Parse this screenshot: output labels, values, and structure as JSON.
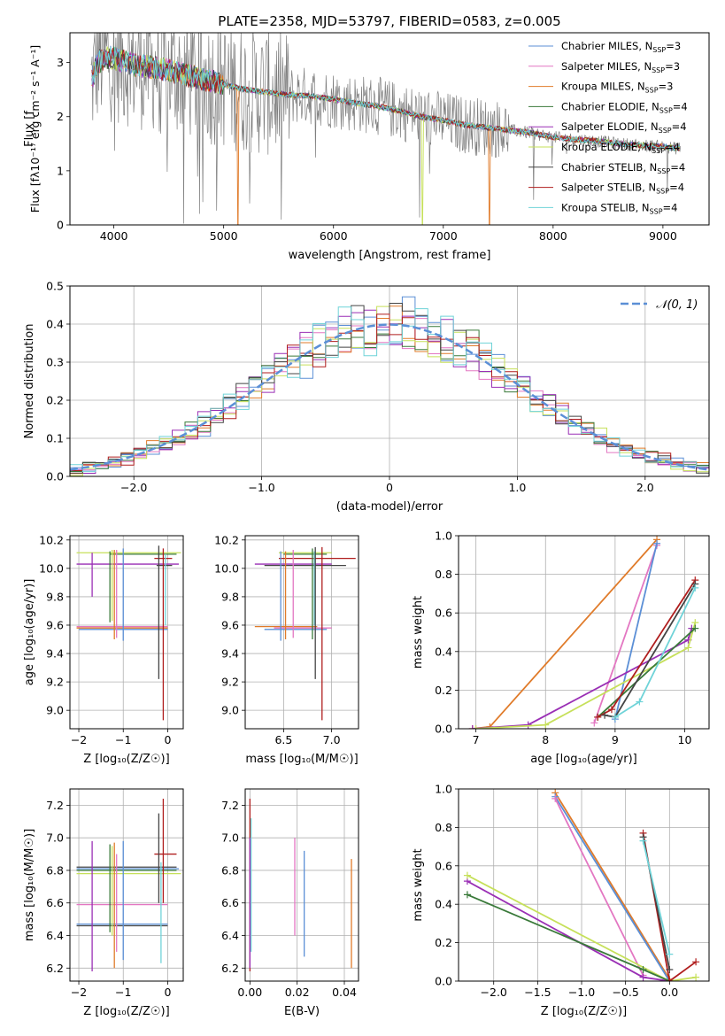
{
  "figure": {
    "title": "PLATE=2358, MJD=53797, FIBERID=0583, z=0.005"
  },
  "colors": {
    "chabrier_miles": "#5b8fd6",
    "salpeter_miles": "#e377c2",
    "kroupa_miles": "#e07b2a",
    "chabrier_elodie": "#3a7a3a",
    "salpeter_elodie": "#9a2fb5",
    "kroupa_elodie": "#c6e05a",
    "chabrier_stelib": "#444444",
    "salpeter_stelib": "#b01e1e",
    "kroupa_stelib": "#6fd3d8",
    "data": "#7f7f7f",
    "gaussian": "#5b8fd6"
  },
  "chart_data": [
    {
      "id": "spectrum",
      "type": "line",
      "xlabel": "wavelength [Angstrom, rest frame]",
      "ylabel": "Flux [f",
      "ylabel_tail": "10",
      "ylabel_unit": " erg cm",
      "ylabel_unit2": " s",
      "ylabel_unit3": " A",
      "xlim": [
        3600,
        9420
      ],
      "ylim": [
        0,
        3.55
      ],
      "xticks": [
        4000,
        5000,
        6000,
        7000,
        8000,
        9000
      ],
      "yticks": [
        0,
        1,
        2,
        3
      ],
      "legend_position": "upper-right",
      "legend": [
        {
          "model": "Chabrier MILES",
          "nssp": "3",
          "color_key": "chabrier_miles"
        },
        {
          "model": "Salpeter MILES",
          "nssp": "3",
          "color_key": "salpeter_miles"
        },
        {
          "model": "Kroupa MILES",
          "nssp": "3",
          "color_key": "kroupa_miles"
        },
        {
          "model": "Chabrier ELODIE",
          "nssp": "4",
          "color_key": "chabrier_elodie"
        },
        {
          "model": "Salpeter ELODIE",
          "nssp": "4",
          "color_key": "salpeter_elodie"
        },
        {
          "model": "Kroupa ELODIE",
          "nssp": "4",
          "color_key": "kroupa_elodie"
        },
        {
          "model": "Chabrier STELIB",
          "nssp": "4",
          "color_key": "chabrier_stelib"
        },
        {
          "model": "Salpeter STELIB",
          "nssp": "4",
          "color_key": "salpeter_stelib"
        },
        {
          "model": "Kroupa STELIB",
          "nssp": "4",
          "color_key": "kroupa_stelib"
        }
      ],
      "continuum": [
        [
          3790,
          2.6
        ],
        [
          3850,
          3.0
        ],
        [
          3950,
          3.1
        ],
        [
          4050,
          3.05
        ],
        [
          4200,
          2.95
        ],
        [
          4400,
          2.9
        ],
        [
          4600,
          2.8
        ],
        [
          4800,
          2.7
        ],
        [
          5000,
          2.6
        ],
        [
          5200,
          2.5
        ],
        [
          5400,
          2.45
        ],
        [
          5600,
          2.4
        ],
        [
          5800,
          2.38
        ],
        [
          6000,
          2.32
        ],
        [
          6200,
          2.25
        ],
        [
          6400,
          2.2
        ],
        [
          6600,
          2.1
        ],
        [
          6800,
          2.0
        ],
        [
          7000,
          1.93
        ],
        [
          7200,
          1.85
        ],
        [
          7400,
          1.8
        ],
        [
          7600,
          1.75
        ],
        [
          7800,
          1.7
        ],
        [
          8000,
          1.62
        ],
        [
          8200,
          1.58
        ],
        [
          8400,
          1.55
        ],
        [
          8600,
          1.5
        ],
        [
          8800,
          1.47
        ],
        [
          9000,
          1.45
        ],
        [
          9100,
          1.42
        ]
      ],
      "dropouts": [
        [
          5130,
          "kroupa_miles"
        ],
        [
          6810,
          "kroupa_elodie"
        ],
        [
          7420,
          "kroupa_miles"
        ]
      ]
    },
    {
      "id": "residuals",
      "type": "histogram",
      "xlabel": "(data-model)/error",
      "ylabel": "Normed distribution",
      "xlim": [
        -2.5,
        2.5
      ],
      "ylim": [
        0,
        0.5
      ],
      "xticks": [
        -2,
        -1,
        0,
        1,
        2
      ],
      "yticks": [
        0.0,
        0.1,
        0.2,
        0.3,
        0.4,
        0.5
      ],
      "grid": true,
      "legend_position": "upper-right",
      "legend_label": "𝒩(0, 1)",
      "bin_width": 0.1,
      "bin_start": -2.5,
      "gaussian": {
        "mean": 0,
        "sigma": 1
      }
    },
    {
      "id": "age-vs-Z",
      "type": "errorbar",
      "xlabel": "Z [log₁₀(Z/Z☉)]",
      "ylabel": "age  [log₁₀(age/yr)]",
      "xlim": [
        -2.2,
        0.35
      ],
      "ylim": [
        8.87,
        10.23
      ],
      "xticks": [
        -2,
        -1,
        0
      ],
      "yticks": [
        9.0,
        9.2,
        9.4,
        9.6,
        9.8,
        10.0,
        10.2
      ],
      "grid": true,
      "hbars": [
        {
          "y": 10.11,
          "x0": -2.05,
          "x1": 0.3,
          "c": "kroupa_elodie"
        },
        {
          "y": 10.1,
          "x0": -1.3,
          "x1": 0.2,
          "c": "chabrier_elodie"
        },
        {
          "y": 10.07,
          "x0": -0.3,
          "x1": 0.1,
          "c": "salpeter_stelib"
        },
        {
          "y": 10.03,
          "x0": -2.05,
          "x1": 0.25,
          "c": "salpeter_elodie"
        },
        {
          "y": 10.02,
          "x0": -0.25,
          "x1": 0.1,
          "c": "chabrier_stelib"
        },
        {
          "y": 9.59,
          "x0": -2.05,
          "x1": 0.0,
          "c": "salpeter_miles"
        },
        {
          "y": 9.58,
          "x0": -2.05,
          "x1": 0.0,
          "c": "kroupa_miles"
        },
        {
          "y": 9.57,
          "x0": -2.0,
          "x1": 0.0,
          "c": "chabrier_miles"
        }
      ],
      "vbars": [
        {
          "x": -1.7,
          "y0": 9.8,
          "y1": 10.11,
          "c": "salpeter_elodie"
        },
        {
          "x": -1.3,
          "y0": 9.62,
          "y1": 10.12,
          "c": "chabrier_elodie"
        },
        {
          "x": -1.25,
          "y0": 9.63,
          "y1": 10.13,
          "c": "kroupa_elodie"
        },
        {
          "x": -1.2,
          "y0": 9.5,
          "y1": 10.13,
          "c": "kroupa_miles"
        },
        {
          "x": -1.15,
          "y0": 9.51,
          "y1": 10.13,
          "c": "salpeter_miles"
        },
        {
          "x": -1.0,
          "y0": 9.49,
          "y1": 10.14,
          "c": "chabrier_miles"
        },
        {
          "x": -0.2,
          "y0": 9.22,
          "y1": 10.16,
          "c": "chabrier_stelib"
        },
        {
          "x": -0.1,
          "y0": 8.93,
          "y1": 10.14,
          "c": "salpeter_stelib"
        },
        {
          "x": -0.05,
          "y0": 9.6,
          "y1": 10.1,
          "c": "kroupa_stelib"
        }
      ]
    },
    {
      "id": "age-vs-mass",
      "type": "errorbar",
      "xlabel": "mass [log₁₀(M/M☉)]",
      "ylabel": "",
      "xlim": [
        6.1,
        7.28
      ],
      "ylim": [
        8.87,
        10.23
      ],
      "xticks": [
        6.5,
        7.0
      ],
      "yticks": [
        9.0,
        9.2,
        9.4,
        9.6,
        9.8,
        10.0,
        10.2
      ],
      "grid": true,
      "hbars": [
        {
          "y": 10.11,
          "x0": 6.45,
          "x1": 7.0,
          "c": "kroupa_elodie"
        },
        {
          "y": 10.1,
          "x0": 6.5,
          "x1": 6.95,
          "c": "chabrier_elodie"
        },
        {
          "y": 10.07,
          "x0": 6.45,
          "x1": 7.25,
          "c": "salpeter_stelib"
        },
        {
          "y": 10.03,
          "x0": 6.2,
          "x1": 7.0,
          "c": "salpeter_elodie"
        },
        {
          "y": 10.02,
          "x0": 6.3,
          "x1": 7.15,
          "c": "chabrier_stelib"
        },
        {
          "y": 9.59,
          "x0": 6.2,
          "x1": 6.85,
          "c": "kroupa_miles"
        },
        {
          "y": 9.58,
          "x0": 6.4,
          "x1": 7.0,
          "c": "salpeter_miles"
        },
        {
          "y": 9.57,
          "x0": 6.3,
          "x1": 6.95,
          "c": "chabrier_miles"
        }
      ],
      "vbars": [
        {
          "x": 6.47,
          "y0": 9.49,
          "y1": 10.12,
          "c": "chabrier_miles"
        },
        {
          "x": 6.52,
          "y0": 9.5,
          "y1": 10.12,
          "c": "kroupa_miles"
        },
        {
          "x": 6.6,
          "y0": 9.51,
          "y1": 10.13,
          "c": "salpeter_miles"
        },
        {
          "x": 6.8,
          "y0": 9.5,
          "y1": 10.14,
          "c": "chabrier_elodie"
        },
        {
          "x": 6.82,
          "y0": 9.6,
          "y1": 10.12,
          "c": "kroupa_stelib"
        },
        {
          "x": 6.83,
          "y0": 9.22,
          "y1": 10.15,
          "c": "chabrier_stelib"
        },
        {
          "x": 6.9,
          "y0": 8.93,
          "y1": 10.15,
          "c": "salpeter_stelib"
        }
      ]
    },
    {
      "id": "weight-vs-age",
      "type": "line",
      "xlabel": "age  [log₁₀(age/yr)]",
      "ylabel": "mass weight",
      "xlim": [
        6.75,
        10.35
      ],
      "ylim": [
        0,
        1.0
      ],
      "xticks": [
        7,
        8,
        9,
        10
      ],
      "yticks": [
        0.0,
        0.2,
        0.4,
        0.6,
        0.8,
        1.0
      ],
      "grid": true,
      "series": [
        {
          "c": "kroupa_miles",
          "points": [
            [
              6.95,
              0.0
            ],
            [
              7.2,
              0.01
            ],
            [
              9.6,
              0.98
            ]
          ]
        },
        {
          "c": "salpeter_miles",
          "points": [
            [
              8.7,
              0.03
            ],
            [
              9.6,
              0.95
            ]
          ]
        },
        {
          "c": "chabrier_miles",
          "points": [
            [
              9.0,
              0.05
            ],
            [
              9.6,
              0.96
            ]
          ]
        },
        {
          "c": "salpeter_elodie",
          "points": [
            [
              6.95,
              0.0
            ],
            [
              7.75,
              0.02
            ],
            [
              10.05,
              0.46
            ],
            [
              10.1,
              0.52
            ]
          ]
        },
        {
          "c": "kroupa_elodie",
          "points": [
            [
              7.0,
              0.0
            ],
            [
              8.0,
              0.02
            ],
            [
              10.05,
              0.42
            ],
            [
              10.15,
              0.55
            ]
          ]
        },
        {
          "c": "chabrier_elodie",
          "points": [
            [
              8.75,
              0.06
            ],
            [
              10.15,
              0.52
            ]
          ]
        },
        {
          "c": "salpeter_stelib",
          "points": [
            [
              8.75,
              0.06
            ],
            [
              8.95,
              0.1
            ],
            [
              10.15,
              0.77
            ]
          ]
        },
        {
          "c": "chabrier_stelib",
          "points": [
            [
              8.85,
              0.07
            ],
            [
              9.0,
              0.06
            ],
            [
              10.15,
              0.75
            ]
          ]
        },
        {
          "c": "kroupa_stelib",
          "points": [
            [
              9.0,
              0.06
            ],
            [
              9.35,
              0.14
            ],
            [
              10.15,
              0.73
            ]
          ]
        }
      ]
    },
    {
      "id": "mass-vs-Z",
      "type": "errorbar",
      "xlabel": "Z [log₁₀(Z/Z☉)]",
      "ylabel": "mass [log₁₀(M/M☉)]",
      "xlim": [
        -2.2,
        0.35
      ],
      "ylim": [
        6.12,
        7.3
      ],
      "xticks": [
        -2,
        -1,
        0
      ],
      "yticks": [
        6.2,
        6.4,
        6.6,
        6.8,
        7.0,
        7.2
      ],
      "grid": true,
      "hbars": [
        {
          "y": 6.9,
          "x0": -0.3,
          "x1": 0.2,
          "c": "salpeter_stelib"
        },
        {
          "y": 6.82,
          "x0": -2.05,
          "x1": 0.2,
          "c": "chabrier_stelib"
        },
        {
          "y": 6.81,
          "x0": -2.05,
          "x1": 0.25,
          "c": "chabrier_miles"
        },
        {
          "y": 6.8,
          "x0": -2.05,
          "x1": 0.2,
          "c": "chabrier_elodie"
        },
        {
          "y": 6.78,
          "x0": -2.05,
          "x1": 0.3,
          "c": "kroupa_elodie"
        },
        {
          "y": 6.59,
          "x0": -2.05,
          "x1": 0.0,
          "c": "salpeter_miles"
        },
        {
          "y": 6.47,
          "x0": -2.05,
          "x1": 0.0,
          "c": "chabrier_miles"
        },
        {
          "y": 6.46,
          "x0": -2.05,
          "x1": 0.0,
          "c": "chabrier_stelib"
        }
      ],
      "vbars": [
        {
          "x": -1.7,
          "y0": 6.18,
          "y1": 6.98,
          "c": "salpeter_elodie"
        },
        {
          "x": -1.3,
          "y0": 6.42,
          "y1": 6.96,
          "c": "chabrier_elodie"
        },
        {
          "x": -1.25,
          "y0": 6.4,
          "y1": 6.95,
          "c": "kroupa_elodie"
        },
        {
          "x": -1.2,
          "y0": 6.2,
          "y1": 6.97,
          "c": "kroupa_miles"
        },
        {
          "x": -1.15,
          "y0": 6.3,
          "y1": 6.9,
          "c": "salpeter_miles"
        },
        {
          "x": -1.0,
          "y0": 6.25,
          "y1": 6.98,
          "c": "chabrier_miles"
        },
        {
          "x": -0.2,
          "y0": 6.6,
          "y1": 7.15,
          "c": "chabrier_stelib"
        },
        {
          "x": -0.1,
          "y0": 6.6,
          "y1": 7.24,
          "c": "salpeter_stelib"
        },
        {
          "x": -0.15,
          "y0": 6.23,
          "y1": 6.85,
          "c": "kroupa_stelib"
        }
      ]
    },
    {
      "id": "mass-vs-EBV",
      "type": "errorbar",
      "xlabel": "E(B-V)",
      "ylabel": "",
      "xlim": [
        -0.002,
        0.046
      ],
      "ylim": [
        6.12,
        7.3
      ],
      "xticks": [
        0.0,
        0.02,
        0.04
      ],
      "yticks": [
        6.2,
        6.4,
        6.6,
        6.8,
        7.0,
        7.2
      ],
      "grid": true,
      "hbars": [],
      "vbars": [
        {
          "x": 0.0,
          "y0": 6.18,
          "y1": 7.24,
          "c": "salpeter_stelib"
        },
        {
          "x": 0.0005,
          "y0": 6.3,
          "y1": 7.12,
          "c": "kroupa_stelib"
        },
        {
          "x": 0.0,
          "y0": 6.2,
          "y1": 7.0,
          "c": "salpeter_elodie"
        },
        {
          "x": 0.019,
          "y0": 6.4,
          "y1": 7.0,
          "c": "salpeter_miles"
        },
        {
          "x": 0.023,
          "y0": 6.27,
          "y1": 6.92,
          "c": "chabrier_miles"
        },
        {
          "x": 0.043,
          "y0": 6.2,
          "y1": 6.87,
          "c": "kroupa_miles"
        }
      ]
    },
    {
      "id": "weight-vs-Z",
      "type": "line",
      "xlabel": "Z [log₁₀(Z/Z☉)]",
      "ylabel": "mass weight",
      "xlim": [
        -2.4,
        0.45
      ],
      "ylim": [
        0,
        1.0
      ],
      "xticks": [
        -2.0,
        -1.5,
        -1.0,
        -0.5,
        0.0
      ],
      "yticks": [
        0.0,
        0.2,
        0.4,
        0.6,
        0.8,
        1.0
      ],
      "grid": true,
      "series": [
        {
          "c": "kroupa_miles",
          "points": [
            [
              -1.3,
              0.98
            ],
            [
              0.0,
              0.01
            ]
          ]
        },
        {
          "c": "chabrier_miles",
          "points": [
            [
              -1.3,
              0.96
            ],
            [
              0.0,
              0.0
            ]
          ]
        },
        {
          "c": "salpeter_miles",
          "points": [
            [
              -1.3,
              0.95
            ],
            [
              -0.3,
              0.03
            ]
          ]
        },
        {
          "c": "salpeter_elodie",
          "points": [
            [
              -2.3,
              0.52
            ],
            [
              -0.3,
              0.02
            ],
            [
              0.0,
              0.0
            ]
          ]
        },
        {
          "c": "kroupa_elodie",
          "points": [
            [
              -2.3,
              0.55
            ],
            [
              0.0,
              0.0
            ],
            [
              0.3,
              0.02
            ]
          ]
        },
        {
          "c": "chabrier_elodie",
          "points": [
            [
              -2.3,
              0.45
            ],
            [
              -0.3,
              0.06
            ],
            [
              0.0,
              0.0
            ]
          ]
        },
        {
          "c": "salpeter_stelib",
          "points": [
            [
              -0.3,
              0.77
            ],
            [
              0.0,
              0.0
            ],
            [
              0.3,
              0.1
            ]
          ]
        },
        {
          "c": "chabrier_stelib",
          "points": [
            [
              -0.3,
              0.75
            ],
            [
              0.0,
              0.06
            ]
          ]
        },
        {
          "c": "kroupa_stelib",
          "points": [
            [
              -0.3,
              0.73
            ],
            [
              0.0,
              0.14
            ]
          ]
        }
      ]
    }
  ]
}
